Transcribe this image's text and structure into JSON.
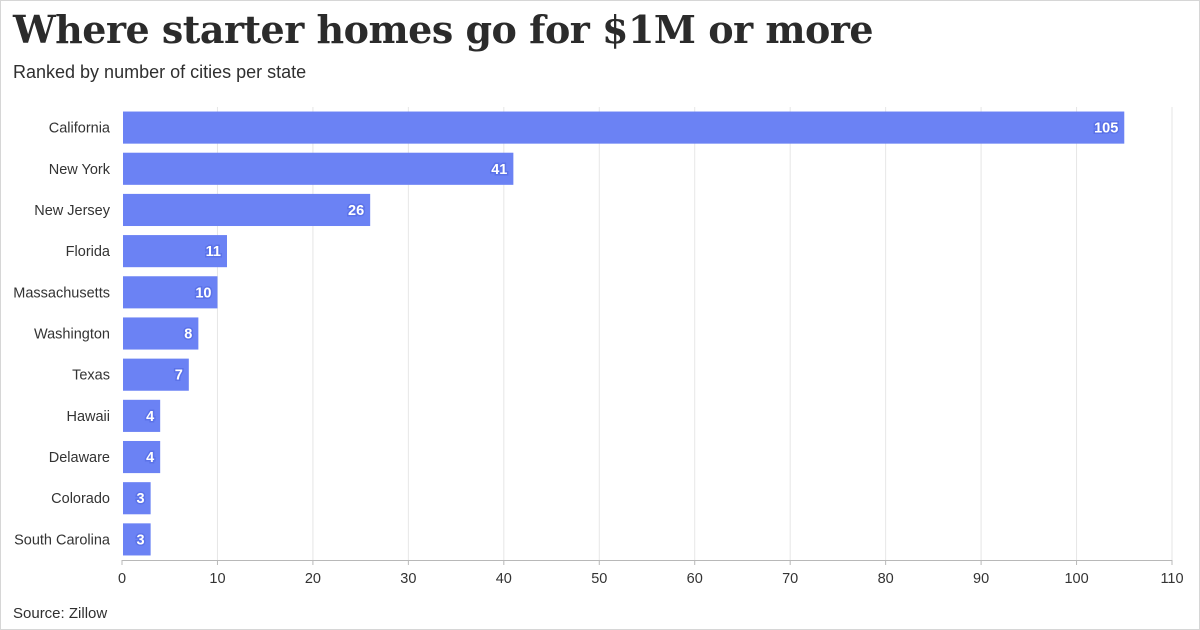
{
  "title": "Where starter homes go for $1M or more",
  "subtitle": "Ranked by number of cities per state",
  "source": "Source: Zillow",
  "colors": {
    "bar": "#6b82f4",
    "gridline": "#e6e6e6",
    "axis": "#b8b8b8"
  },
  "chart_data": {
    "type": "bar",
    "orientation": "horizontal",
    "categories": [
      "California",
      "New York",
      "New Jersey",
      "Florida",
      "Massachusetts",
      "Washington",
      "Texas",
      "Hawaii",
      "Delaware",
      "Colorado",
      "South Carolina"
    ],
    "values": [
      105,
      41,
      26,
      11,
      10,
      8,
      7,
      4,
      4,
      3,
      3
    ],
    "value_labels": [
      "105",
      "41",
      "26",
      "11",
      "10",
      "8",
      "7",
      "4",
      "4",
      "3",
      "3"
    ],
    "x_ticks": [
      "0",
      "10",
      "20",
      "30",
      "40",
      "50",
      "60",
      "70",
      "80",
      "90",
      "100",
      "110"
    ],
    "xlim": [
      0,
      110
    ],
    "grid": true,
    "xlabel": "",
    "ylabel": ""
  }
}
